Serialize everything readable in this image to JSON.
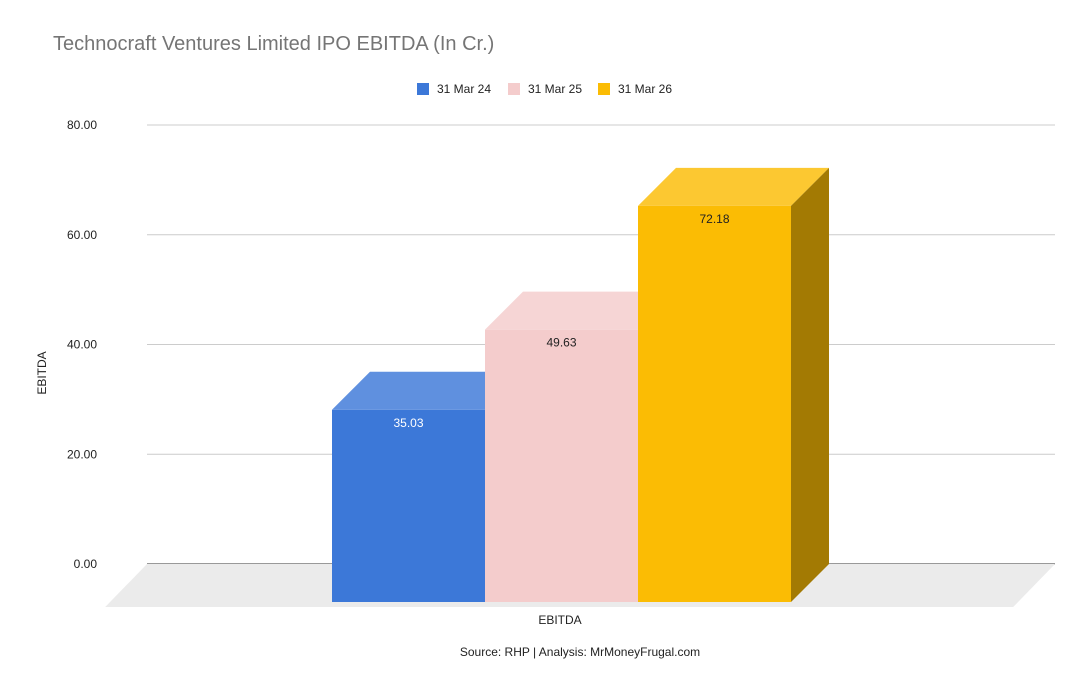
{
  "chart_data": {
    "type": "bar",
    "title": "Technocraft Ventures Limited IPO EBITDA (In Cr.)",
    "categories": [
      "EBITDA"
    ],
    "series": [
      {
        "name": "31 Mar 24",
        "values": [
          35.03
        ],
        "color": "#3c78d8",
        "label": "35.03"
      },
      {
        "name": "31 Mar 25",
        "values": [
          49.63
        ],
        "color": "#f4cccc",
        "label": "49.63"
      },
      {
        "name": "31 Mar 26",
        "values": [
          72.18
        ],
        "color": "#fbbc04",
        "label": "72.18"
      }
    ],
    "xlabel": "EBITDA",
    "ylabel": "EBITDA",
    "ylim": [
      0,
      80
    ],
    "yticks": [
      "0.00",
      "20.00",
      "40.00",
      "60.00",
      "80.00"
    ],
    "grid": true,
    "legend_position": "top",
    "style": "3d",
    "source": "Source: RHP | Analysis: MrMoneyFrugal.com"
  }
}
